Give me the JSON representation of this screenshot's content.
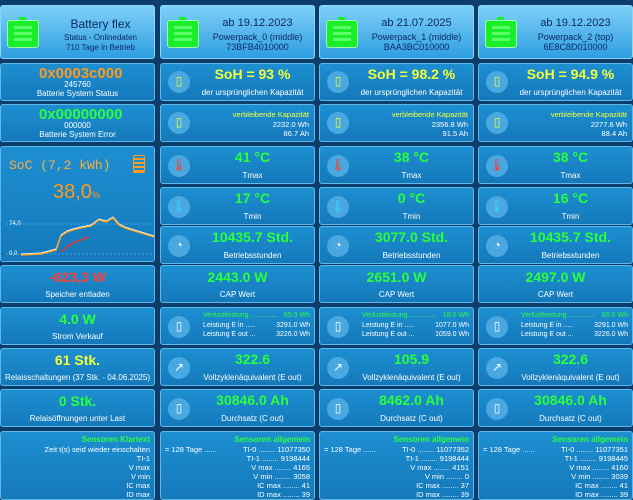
{
  "header": {
    "flex": {
      "title": "Battery flex",
      "line1": "Status - Onlinedaten",
      "line2": "710 Tage in Betrieb"
    },
    "packs": [
      {
        "date": "ab 19.12.2023",
        "name": "Powerpack_0 (middle)",
        "serial": "73BFB4010000"
      },
      {
        "date": "ab 21.07.2025",
        "name": "Powerpack_1 (middle)",
        "serial": "BAA3BC010000"
      },
      {
        "date": "ab 19.12.2023",
        "name": "Powerpack_2 (top)",
        "serial": "6E8C8D010000"
      }
    ]
  },
  "left": {
    "status": {
      "hex": "0x0003c000",
      "num": "245760",
      "label": "Batterie System Status"
    },
    "error": {
      "hex": "0x00000000",
      "num": "000000",
      "label": "Batterie System Error"
    },
    "soc": {
      "title": "SoC (7,2 kWh)",
      "value": "38,0",
      "unit": "%",
      "y_high": "74,0",
      "y_low": "0,0"
    },
    "power": {
      "value": "-623,3 W",
      "label": "Speicher entladen"
    },
    "sell": {
      "value": "4.0 W",
      "label": "Strom Verkauf"
    },
    "relay": {
      "value": "61 Stk.",
      "label": "Relaisschaltungen (37 Stk. - 04.06.2025)"
    },
    "relayopen": {
      "value": "0 Stk.",
      "label": "Relaisöffnungen unter Last"
    },
    "sensors": {
      "title": "Sensoren Klartext",
      "rows": [
        "Zeit t(s) seid wieder einschalten",
        "TI-1",
        "V max",
        "V min",
        "IC max",
        "ID max"
      ]
    }
  },
  "labels": {
    "soh": "der ursprünglichen Kapazität",
    "cap": "verbleibende Kapazität",
    "tmax": "Tmax",
    "tmin": "Tmin",
    "hours": "Betriebsstunden",
    "capw": "CAP Wert",
    "vollz": "Vollzyklenäquivalent (E out)",
    "durch": "Durchsatz (C out)",
    "sens": "Sensoren allgemein"
  },
  "packs": [
    {
      "soh": "SoH = 93 %",
      "cap_wh": "2232.0 Wh",
      "cap_ah": "86.7 Ah",
      "tmax": "41 °C",
      "tmin": "17 °C",
      "hours": "10435.7 Std.",
      "capw": "2443.0 W",
      "loss_label": "Verlustleistung ..............",
      "loss": "65.0 Wh",
      "ein_label": "Leistung E in .....",
      "ein": "3291.0 Wh",
      "eout_label": "Leistung E out ...",
      "eout": "3226.0 Wh",
      "vollz": "322.6",
      "durch": "30846.0 Ah",
      "sens": [
        [
          "= 128 Tage ......",
          "TI-0 ........ 11077350"
        ],
        [
          "",
          "TI-1 ........ 9198444"
        ],
        [
          "",
          "V max ........ 4165"
        ],
        [
          "",
          "V min ........ 3058"
        ],
        [
          "",
          "IC max ........ 41"
        ],
        [
          "",
          "ID max ........ 39"
        ]
      ]
    },
    {
      "soh": "SoH = 98.2 %",
      "cap_wh": "2356.8 Wh",
      "cap_ah": "91.5 Ah",
      "tmax": "38 °C",
      "tmin": "0 °C",
      "hours": "3077.0 Std.",
      "capw": "2651.0 W",
      "loss_label": "Verlustleistung ..............",
      "loss": "18.0 Wh",
      "ein_label": "Leistung E in .....",
      "ein": "1077.0 Wh",
      "eout_label": "Leistung E out ...",
      "eout": "1059.0 Wh",
      "vollz": "105.9",
      "durch": "8462.0 Ah",
      "sens": [
        [
          "= 128 Tage ......",
          "TI-0 ........ 11077352"
        ],
        [
          "",
          "TI-1 ........ 9198444"
        ],
        [
          "",
          "V max ........ 4151"
        ],
        [
          "",
          "V min ........ 0"
        ],
        [
          "",
          "IC max ........ 37"
        ],
        [
          "",
          "ID max ........ 39"
        ]
      ]
    },
    {
      "soh": "SoH = 94.9 %",
      "cap_wh": "2277.6 Wh",
      "cap_ah": "88.4 Ah",
      "tmax": "38 °C",
      "tmin": "16 °C",
      "hours": "10435.7 Std.",
      "capw": "2497.0 W",
      "loss_label": "Verlustleistung ..............",
      "loss": "65.0 Wh",
      "ein_label": "Leistung E in .....",
      "ein": "3291.0 Wh",
      "eout_label": "Leistung E out ...",
      "eout": "3226.0 Wh",
      "vollz": "322.6",
      "durch": "30846.0 Ah",
      "sens": [
        [
          "= 128 Tage ......",
          "TI-0 ........ 11077351"
        ],
        [
          "",
          "TI-1 ........ 9198445"
        ],
        [
          "",
          "V max ........ 4160"
        ],
        [
          "",
          "V min ........ 3039"
        ],
        [
          "",
          "IC max ........ 41"
        ],
        [
          "",
          "ID max ........ 39"
        ]
      ]
    }
  ]
}
